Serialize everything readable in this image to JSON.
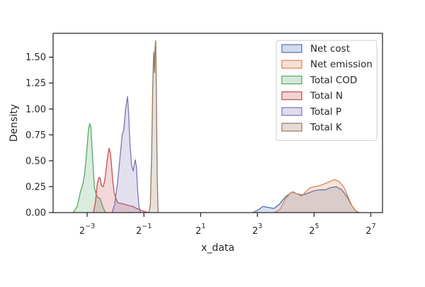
{
  "chart_data": {
    "type": "area",
    "kind": "kernel density estimate",
    "xlabel": "x_data",
    "ylabel": "Density",
    "x_scale": "log2",
    "x_ticks": [
      {
        "value": 0.125,
        "base": "2",
        "exp": "−3"
      },
      {
        "value": 0.5,
        "base": "2",
        "exp": "−1"
      },
      {
        "value": 2,
        "base": "2",
        "exp": "1"
      },
      {
        "value": 8,
        "base": "2",
        "exp": "3"
      },
      {
        "value": 32,
        "base": "2",
        "exp": "5"
      },
      {
        "value": 128,
        "base": "2",
        "exp": "7"
      }
    ],
    "xlim": [
      0.0544,
      170.4
    ],
    "y_ticks": [
      {
        "value": 0,
        "label": "0.00"
      },
      {
        "value": 0.25,
        "label": "0.25"
      },
      {
        "value": 0.5,
        "label": "0.50"
      },
      {
        "value": 0.75,
        "label": "0.75"
      },
      {
        "value": 1.0,
        "label": "1.00"
      },
      {
        "value": 1.25,
        "label": "1.25"
      },
      {
        "value": 1.5,
        "label": "1.50"
      }
    ],
    "ylim": [
      0,
      1.73
    ],
    "grid": false,
    "legend_position": "upper right",
    "series": [
      {
        "name": "Net cost",
        "color": "#4c72b0",
        "points": [
          [
            7.1,
            0
          ],
          [
            8.0,
            0.02
          ],
          [
            9.2,
            0.06
          ],
          [
            10.4,
            0.05
          ],
          [
            12.0,
            0.04
          ],
          [
            13.7,
            0.08
          ],
          [
            15.8,
            0.15
          ],
          [
            18.7,
            0.2
          ],
          [
            21.1,
            0.18
          ],
          [
            24.4,
            0.17
          ],
          [
            27.9,
            0.19
          ],
          [
            32.0,
            0.21
          ],
          [
            36.8,
            0.22
          ],
          [
            42.2,
            0.22
          ],
          [
            47.5,
            0.24
          ],
          [
            55.0,
            0.25
          ],
          [
            63.0,
            0.22
          ],
          [
            72.0,
            0.15
          ],
          [
            80.3,
            0.07
          ],
          [
            88.0,
            0.02
          ],
          [
            96.0,
            0
          ]
        ]
      },
      {
        "name": "Net emission",
        "color": "#dd8452",
        "points": [
          [
            12.0,
            0
          ],
          [
            13.9,
            0.03
          ],
          [
            15.8,
            0.13
          ],
          [
            18.0,
            0.19
          ],
          [
            19.4,
            0.2
          ],
          [
            21.1,
            0.18
          ],
          [
            23.7,
            0.16
          ],
          [
            26.0,
            0.2
          ],
          [
            29.3,
            0.24
          ],
          [
            32.0,
            0.25
          ],
          [
            36.8,
            0.26
          ],
          [
            41.8,
            0.28
          ],
          [
            47.3,
            0.3
          ],
          [
            52.7,
            0.32
          ],
          [
            59.0,
            0.3
          ],
          [
            66.9,
            0.24
          ],
          [
            73.5,
            0.15
          ],
          [
            81.6,
            0.06
          ],
          [
            90.5,
            0.01
          ],
          [
            98.0,
            0
          ]
        ]
      },
      {
        "name": "Total COD",
        "color": "#55a868",
        "points": [
          [
            0.089,
            0
          ],
          [
            0.098,
            0.06
          ],
          [
            0.106,
            0.2
          ],
          [
            0.113,
            0.28
          ],
          [
            0.118,
            0.39
          ],
          [
            0.124,
            0.6
          ],
          [
            0.129,
            0.8
          ],
          [
            0.133,
            0.86
          ],
          [
            0.137,
            0.82
          ],
          [
            0.143,
            0.52
          ],
          [
            0.149,
            0.25
          ],
          [
            0.156,
            0.17
          ],
          [
            0.164,
            0.14
          ],
          [
            0.17,
            0.14
          ],
          [
            0.177,
            0.1
          ],
          [
            0.184,
            0.05
          ],
          [
            0.196,
            0
          ]
        ]
      },
      {
        "name": "Total N",
        "color": "#c44e52",
        "points": [
          [
            0.145,
            0
          ],
          [
            0.153,
            0.1
          ],
          [
            0.16,
            0.28
          ],
          [
            0.167,
            0.34
          ],
          [
            0.172,
            0.33
          ],
          [
            0.177,
            0.26
          ],
          [
            0.185,
            0.25
          ],
          [
            0.193,
            0.32
          ],
          [
            0.204,
            0.51
          ],
          [
            0.213,
            0.62
          ],
          [
            0.22,
            0.58
          ],
          [
            0.226,
            0.47
          ],
          [
            0.234,
            0.3
          ],
          [
            0.242,
            0.19
          ],
          [
            0.252,
            0.14
          ],
          [
            0.262,
            0.1
          ],
          [
            0.275,
            0.09
          ],
          [
            0.29,
            0.09
          ],
          [
            0.31,
            0.08
          ],
          [
            0.34,
            0.07
          ],
          [
            0.38,
            0.06
          ],
          [
            0.42,
            0.04
          ],
          [
            0.47,
            0.02
          ],
          [
            0.56,
            0
          ]
        ]
      },
      {
        "name": "Total P",
        "color": "#8172b3",
        "points": [
          [
            0.23,
            0
          ],
          [
            0.245,
            0.08
          ],
          [
            0.262,
            0.28
          ],
          [
            0.28,
            0.55
          ],
          [
            0.295,
            0.76
          ],
          [
            0.305,
            0.79
          ],
          [
            0.32,
            1.0
          ],
          [
            0.335,
            1.12
          ],
          [
            0.345,
            0.95
          ],
          [
            0.355,
            0.68
          ],
          [
            0.37,
            0.46
          ],
          [
            0.385,
            0.4
          ],
          [
            0.395,
            0.46
          ],
          [
            0.405,
            0.51
          ],
          [
            0.417,
            0.44
          ],
          [
            0.43,
            0.2
          ],
          [
            0.445,
            0.05
          ],
          [
            0.46,
            0
          ]
        ]
      },
      {
        "name": "Total K",
        "color": "#937860",
        "points": [
          [
            0.565,
            0
          ],
          [
            0.585,
            0.07
          ],
          [
            0.605,
            0.58
          ],
          [
            0.62,
            1.2
          ],
          [
            0.635,
            1.55
          ],
          [
            0.648,
            1.35
          ],
          [
            0.658,
            1.6
          ],
          [
            0.668,
            1.66
          ],
          [
            0.678,
            1.2
          ],
          [
            0.692,
            0.35
          ],
          [
            0.708,
            0
          ]
        ]
      }
    ]
  }
}
